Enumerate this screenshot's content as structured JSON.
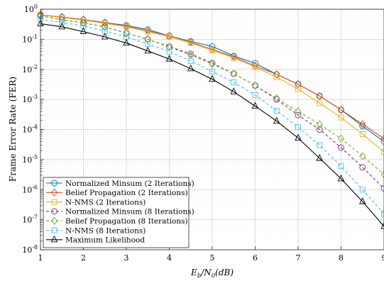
{
  "chart_data": {
    "type": "line",
    "xlabel_main": "E",
    "xlabel_sub": "b",
    "xlabel_rest": "/N",
    "xlabel_sub2": "0",
    "xlabel_unit": "(dB)",
    "ylabel": "Frame Error Rate (FER)",
    "x_scale": "linear",
    "y_scale": "log",
    "xlim": [
      1,
      9
    ],
    "ylim": [
      1e-08,
      1
    ],
    "x_ticks": [
      "1",
      "2",
      "3",
      "4",
      "5",
      "6",
      "7",
      "8",
      "9"
    ],
    "y_ticks": [
      {
        "base": "10",
        "exp": "0"
      },
      {
        "base": "10",
        "exp": "-1"
      },
      {
        "base": "10",
        "exp": "-2"
      },
      {
        "base": "10",
        "exp": "-3"
      },
      {
        "base": "10",
        "exp": "-4"
      },
      {
        "base": "10",
        "exp": "-5"
      },
      {
        "base": "10",
        "exp": "-6"
      },
      {
        "base": "10",
        "exp": "-7"
      },
      {
        "base": "10",
        "exp": "-8"
      }
    ],
    "grid": true,
    "legend_position": "bottom-left",
    "x": [
      1,
      1.5,
      2,
      2.5,
      3,
      3.5,
      4,
      4.5,
      5,
      5.5,
      6,
      6.5,
      7,
      7.5,
      8,
      8.5,
      9
    ],
    "series": [
      {
        "name": "Normalized Minsum (2 Iterations)",
        "color": "#0072BD",
        "marker": "circle",
        "dash": "solid",
        "values": [
          0.65,
          0.55,
          0.45,
          0.36,
          0.29,
          0.21,
          0.13,
          0.085,
          0.058,
          0.028,
          0.016,
          0.0068,
          0.0032,
          0.0013,
          0.00045,
          0.00013,
          4e-05
        ]
      },
      {
        "name": "Belief Propagation (2 Iterations)",
        "color": "#D95319",
        "marker": "diamond",
        "dash": "solid",
        "values": [
          0.65,
          0.55,
          0.45,
          0.36,
          0.27,
          0.19,
          0.13,
          0.08,
          0.046,
          0.026,
          0.013,
          0.0068,
          0.0032,
          0.0013,
          0.00045,
          0.00015,
          5e-05
        ]
      },
      {
        "name": "N-NMS (2 Iterations)",
        "color": "#EDB120",
        "marker": "square",
        "dash": "solid",
        "values": [
          0.64,
          0.53,
          0.43,
          0.34,
          0.26,
          0.18,
          0.12,
          0.075,
          0.043,
          0.024,
          0.012,
          0.0055,
          0.0022,
          0.00075,
          0.00025,
          7e-05,
          1.8e-05
        ]
      },
      {
        "name": "Normalized Minsum (8 Iterations)",
        "color": "#7E2F8E",
        "marker": "circle",
        "dash": "dashed",
        "values": [
          0.6,
          0.45,
          0.35,
          0.26,
          0.16,
          0.1,
          0.057,
          0.033,
          0.016,
          0.0072,
          0.0029,
          0.001,
          0.0003,
          0.0001,
          2.5e-05,
          5.5e-06,
          1.1e-06
        ]
      },
      {
        "name": "Belief Propagation (8 Iterations)",
        "color": "#77AC30",
        "marker": "diamond",
        "dash": "dashed",
        "values": [
          0.6,
          0.45,
          0.35,
          0.26,
          0.16,
          0.1,
          0.055,
          0.03,
          0.015,
          0.0072,
          0.0029,
          0.0011,
          0.0004,
          0.00015,
          5e-05,
          1.3e-05,
          3.2e-06
        ]
      },
      {
        "name": "N-NMS (8 Iterations)",
        "color": "#4DBEEE",
        "marker": "square",
        "dash": "dashed",
        "values": [
          0.47,
          0.36,
          0.28,
          0.19,
          0.12,
          0.07,
          0.039,
          0.019,
          0.0085,
          0.0037,
          0.0014,
          0.00042,
          0.00012,
          3e-05,
          6e-06,
          1e-06,
          1.6e-07
        ]
      },
      {
        "name": "Maximum Likelihood",
        "color": "#000000",
        "marker": "triangle",
        "dash": "solid",
        "values": [
          0.33,
          0.26,
          0.18,
          0.12,
          0.075,
          0.041,
          0.022,
          0.0105,
          0.0047,
          0.0018,
          0.0006,
          0.00019,
          5.2e-05,
          1.1e-05,
          2.3e-06,
          4e-07,
          6e-08
        ]
      }
    ]
  }
}
